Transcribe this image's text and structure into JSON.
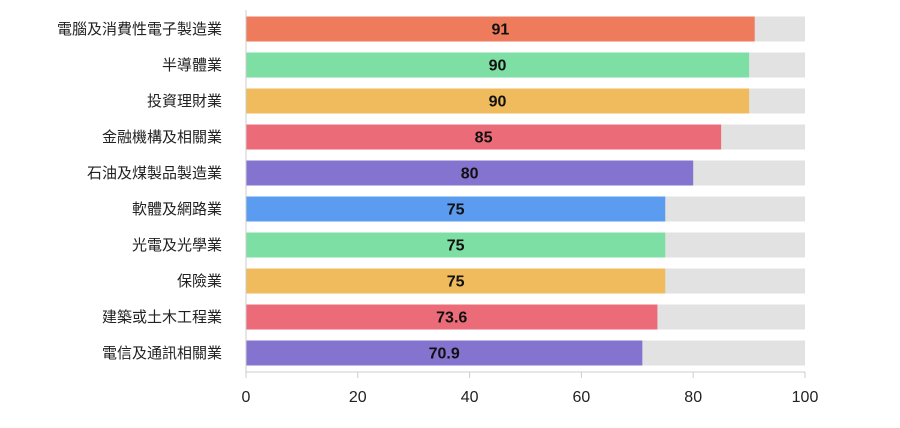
{
  "chart_data": {
    "type": "bar",
    "orientation": "horizontal",
    "categories": [
      "電腦及消費性電子製造業",
      "半導體業",
      "投資理財業",
      "金融機構及相關業",
      "石油及煤製品製造業",
      "軟體及網路業",
      "光電及光學業",
      "保險業",
      "建築或土木工程業",
      "電信及通訊相關業"
    ],
    "values": [
      91,
      90,
      90,
      85,
      80,
      75,
      75,
      75,
      73.6,
      70.9
    ],
    "value_labels": [
      "91",
      "90",
      "90",
      "85",
      "80",
      "75",
      "75",
      "75",
      "73.6",
      "70.9"
    ],
    "bar_colors": [
      "#ee7b5c",
      "#7ddfa3",
      "#efbb5c",
      "#eb6b78",
      "#8473cf",
      "#5b9cf0",
      "#7ddfa3",
      "#efbb5c",
      "#eb6b78",
      "#8473cf"
    ],
    "track_color": "#e2e2e2",
    "xlim": [
      0,
      100
    ],
    "xticks": [
      0,
      20,
      40,
      60,
      80,
      100
    ],
    "title": "",
    "xlabel": "",
    "ylabel": "",
    "grid": false,
    "legend": "none"
  }
}
